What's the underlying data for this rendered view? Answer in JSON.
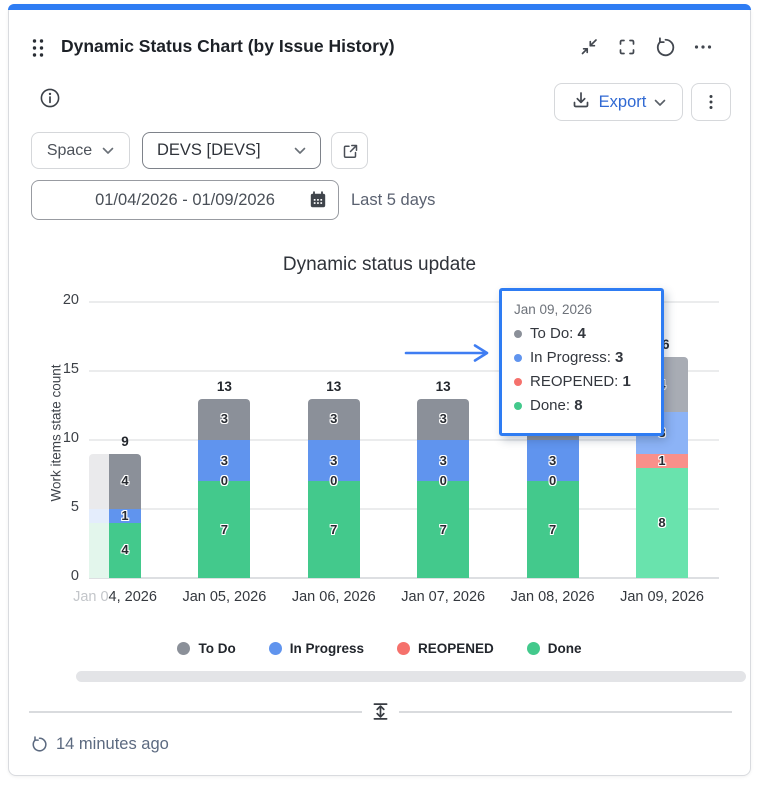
{
  "widget": {
    "title": "Dynamic Status Chart (by Issue History)",
    "export_label": "Export",
    "last_updated": "14 minutes ago",
    "accent_color": "#2e7cf3",
    "icons": {
      "drag_handle": "grip-dots",
      "collapse": "inward-diagonal-arrows",
      "fullscreen": "corner-brackets",
      "refresh": "↺",
      "more_horizontal": "⋯",
      "info": "ⓘ",
      "download": "⤓",
      "chevron_down": "⌄",
      "more_vertical": "⋮",
      "open_in_new": "↗",
      "calendar": "▦",
      "resize_vertical": "↕",
      "refresh_small": "↺"
    }
  },
  "filters": {
    "space_label": "Space",
    "project_value": "DEVS [DEVS]",
    "date_range": "01/04/2026 - 01/09/2026",
    "date_hint": "Last 5 days"
  },
  "chart_data": {
    "type": "bar",
    "stacked": true,
    "title": "Dynamic status update",
    "xlabel": "",
    "ylabel": "Work items state count",
    "ylim": [
      0,
      20
    ],
    "yticks": [
      0,
      5,
      10,
      15,
      20
    ],
    "grid": true,
    "legend_position": "bottom",
    "categories": [
      "Jan 04, 2026",
      "Jan 05, 2026",
      "Jan 06, 2026",
      "Jan 07, 2026",
      "Jan 08, 2026",
      "Jan 09, 2026"
    ],
    "series": [
      {
        "name": "To Do",
        "color": "#8b9099",
        "hover_color": "#a8acb4",
        "faded_color": "#eaeaec",
        "values": [
          4,
          3,
          3,
          3,
          3,
          4
        ]
      },
      {
        "name": "In Progress",
        "color": "#6094ee",
        "hover_color": "#8cb3f6",
        "faded_color": "#e4edfc",
        "values": [
          1,
          3,
          3,
          3,
          3,
          3
        ]
      },
      {
        "name": "REOPENED",
        "color": "#f5716c",
        "hover_color": "#f9908a",
        "faded_color": "#fdecec",
        "values": [
          0,
          0,
          0,
          0,
          0,
          1
        ]
      },
      {
        "name": "Done",
        "color": "#43c98c",
        "hover_color": "#69e3ad",
        "faded_color": "#e3f6ec",
        "values": [
          4,
          7,
          7,
          7,
          7,
          8
        ]
      }
    ],
    "stack_order": [
      "Done",
      "REOPENED",
      "In Progress",
      "To Do"
    ],
    "totals": [
      9,
      13,
      13,
      13,
      13,
      16
    ],
    "zero_label_series": "REOPENED",
    "zero_label_bars": [
      1,
      2,
      3,
      4
    ],
    "hovered_bar": 5,
    "clipped_bar": 0,
    "clipped_label_prefix_chars": 5
  },
  "tooltip": {
    "title": "Jan 09, 2026",
    "rows": [
      {
        "label": "To Do",
        "value": "4",
        "color": "#8b9099"
      },
      {
        "label": "In Progress",
        "value": "3",
        "color": "#6094ee"
      },
      {
        "label": "REOPENED",
        "value": "1",
        "color": "#f5716c"
      },
      {
        "label": "Done",
        "value": "8",
        "color": "#43c98c"
      }
    ]
  }
}
